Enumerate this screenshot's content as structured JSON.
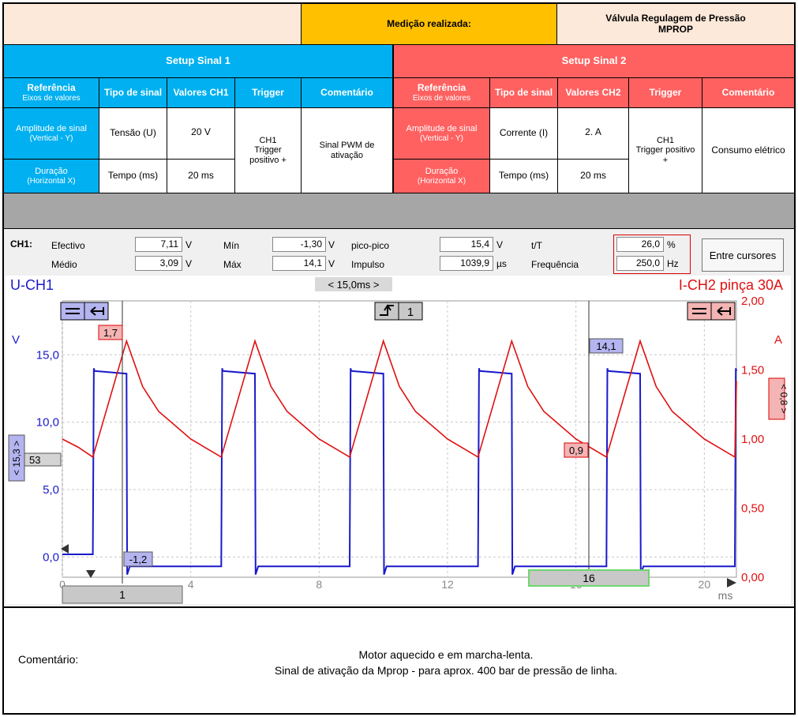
{
  "header": {
    "measurement_label": "Medição realizada:",
    "component_line1": "Válvula Regulagem de Pressão",
    "component_line2": "MPROP"
  },
  "setup1": {
    "title": "Setup Sinal 1",
    "col_ref_title": "Referência",
    "col_ref_sub": "Eixos de valores",
    "col_type": "Tipo de sinal",
    "col_values": "Valores CH1",
    "col_trigger": "Trigger",
    "col_comment": "Comentário",
    "row1_ref_a": "Amplitude de sinal",
    "row1_ref_b": "(Vertical - Y)",
    "row1_type": "Tensão (U)",
    "row1_value": "20 V",
    "row2_ref_a": "Duração",
    "row2_ref_b": "(Horizontal X)",
    "row2_type": "Tempo (ms)",
    "row2_value": "20 ms",
    "trigger_a": "CH1",
    "trigger_b": "Trigger",
    "trigger_c": "positivo +",
    "comment_a": "Sinal PWM de",
    "comment_b": "ativação"
  },
  "setup2": {
    "title": "Setup Sinal 2",
    "col_ref_title": "Referência",
    "col_ref_sub": "Eixos de valores",
    "col_type": "Tipo de sinal",
    "col_values": "Valores CH2",
    "col_trigger": "Trigger",
    "col_comment": "Comentário",
    "row1_ref_a": "Amplitude de sinal",
    "row1_ref_b": "(Vertical - Y)",
    "row1_type": "Corrente (I)",
    "row1_value": "2. A",
    "row2_ref_a": "Duração",
    "row2_ref_b": "(Horizontal X)",
    "row2_type": "Tempo (ms)",
    "row2_value": "20 ms",
    "trigger_a": "CH1",
    "trigger_b": "Trigger positivo",
    "trigger_c": "+",
    "comment": "Consumo elétrico"
  },
  "scope": {
    "channel": "CH1:",
    "effective_label": "Efectivo",
    "effective_value": "7,11",
    "effective_unit": "V",
    "mean_label": "Médio",
    "mean_value": "3,09",
    "mean_unit": "V",
    "min_label": "Mín",
    "min_value": "-1,30",
    "min_unit": "V",
    "max_label": "Máx",
    "max_value": "14,1",
    "max_unit": "V",
    "pp_label": "pico-pico",
    "pp_value": "15,4",
    "pp_unit": "V",
    "impulse_label": "Impulso",
    "impulse_value": "1039,9",
    "impulse_unit": "µs",
    "duty_label": "t/T",
    "duty_value": "26,0",
    "duty_unit": "%",
    "freq_label": "Frequência",
    "freq_value": "250,0",
    "freq_unit": "Hz",
    "cursor_button": "Entre cursores",
    "ch1_title": "U-CH1",
    "ch2_title": "I-CH2 pinça 30A",
    "period_marker": "< 15,0ms >",
    "trigger_channel": "1",
    "left_unit": "V",
    "right_unit": "A",
    "x_unit": "ms",
    "left_scale_badge": "< 15,3 >",
    "right_scale_badge": "< 0,8 >",
    "left_offset_badge": "53",
    "cursor1_label": "1",
    "cursor2_label": "16",
    "ann_peak_current": "1,7",
    "ann_low_current": "0,9",
    "ann_high_voltage": "14,1",
    "ann_low_voltage": "-1,2",
    "colors": {
      "ch1": "#1a1acc",
      "ch2": "#e01010"
    }
  },
  "chart_data": {
    "type": "line",
    "x_ticks": [
      "0",
      "4",
      "8",
      "12",
      "16",
      "20"
    ],
    "xlim": [
      0,
      21
    ],
    "y_left_ticks": [
      "0,0",
      "5,0",
      "10,0",
      "15,0"
    ],
    "ylim_left": [
      -1.5,
      19
    ],
    "y_right_ticks": [
      "0,00",
      "0,50",
      "1,00",
      "1,50",
      "2,00"
    ],
    "ylim_right": [
      0,
      2.0
    ],
    "grid": true,
    "series": [
      {
        "name": "U-CH1",
        "axis": "left",
        "x": [
          0,
          0.95,
          0.98,
          1.0,
          2.0,
          2.02,
          2.1,
          4.95,
          4.98,
          5.0,
          6.0,
          6.02,
          6.1,
          8.95,
          8.98,
          9.0,
          10.0,
          10.02,
          10.1,
          12.95,
          12.98,
          13.0,
          14.0,
          14.02,
          14.1,
          16.95,
          16.98,
          17.0,
          18.0,
          18.02,
          18.1,
          20.95,
          20.98,
          21.0
        ],
        "y": [
          0.2,
          0.2,
          14.0,
          13.8,
          13.6,
          -1.3,
          -0.7,
          -0.7,
          14.0,
          13.8,
          13.6,
          -1.3,
          -0.7,
          -0.7,
          14.0,
          13.8,
          13.6,
          -1.3,
          -0.7,
          -0.7,
          14.0,
          13.8,
          13.6,
          -1.3,
          -0.7,
          -0.7,
          14.0,
          13.8,
          13.6,
          -1.3,
          -0.7,
          -0.7,
          14.0,
          13.8
        ]
      },
      {
        "name": "I-CH2 pinça 30A",
        "axis": "right",
        "x": [
          0,
          0.5,
          0.95,
          2.0,
          2.5,
          3.0,
          4.0,
          4.95,
          6.0,
          6.5,
          7.0,
          8.0,
          8.95,
          10.0,
          10.5,
          11.0,
          12.0,
          12.95,
          14.0,
          14.5,
          15.0,
          16.0,
          16.95,
          18.0,
          18.5,
          19.0,
          20.0,
          20.95,
          21.0
        ],
        "y": [
          1.0,
          0.94,
          0.87,
          1.71,
          1.38,
          1.2,
          1.0,
          0.87,
          1.71,
          1.38,
          1.2,
          1.0,
          0.87,
          1.71,
          1.38,
          1.2,
          1.0,
          0.87,
          1.71,
          1.38,
          1.2,
          1.0,
          0.87,
          1.71,
          1.38,
          1.2,
          1.0,
          0.87,
          1.42
        ]
      }
    ]
  },
  "footer": {
    "label": "Comentário:",
    "line1": "Motor aquecido e em marcha-lenta.",
    "line2": "Sinal de ativação da Mprop - para aprox. 400 bar de pressão de linha."
  }
}
